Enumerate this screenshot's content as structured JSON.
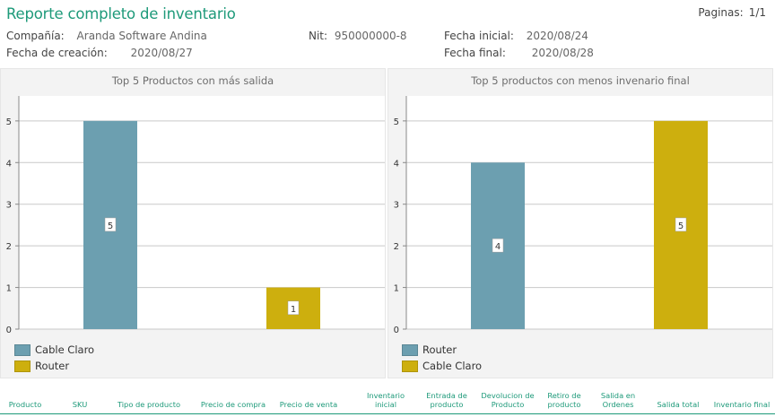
{
  "header": {
    "title": "Reporte completo de inventario",
    "pages_label": "Paginas:",
    "pages_value": "1/1"
  },
  "meta": {
    "company_label": "Compañía:",
    "company_value": "Aranda Software Andina",
    "nit_label": "Nit:",
    "nit_value": "950000000-8",
    "start_label": "Fecha inicial:",
    "start_value": "2020/08/24",
    "created_label": "Fecha de creación:",
    "created_value": "2020/08/27",
    "end_label": "Fecha final:",
    "end_value": "2020/08/28"
  },
  "colors": {
    "accent": "#1e9a7a",
    "series_blue": "#6c9fb0",
    "series_gold": "#cdaf0e"
  },
  "chart_data": [
    {
      "type": "bar",
      "title": "Top 5 Productos con más salida",
      "categories": [
        "Cable Claro",
        "Router"
      ],
      "values": [
        5,
        1
      ],
      "colors": [
        "#6c9fb0",
        "#cdaf0e"
      ],
      "ylim": [
        0,
        5.6
      ],
      "yticks": [
        "0",
        "1",
        "2",
        "3",
        "4",
        "5"
      ],
      "grid": true,
      "legend": [
        "Cable Claro",
        "Router"
      ],
      "legend_position": "bottom-left"
    },
    {
      "type": "bar",
      "title": "Top 5 productos con menos invenario final",
      "categories": [
        "Router",
        "Cable Claro"
      ],
      "values": [
        4,
        5
      ],
      "colors": [
        "#6c9fb0",
        "#cdaf0e"
      ],
      "ylim": [
        0,
        5.6
      ],
      "yticks": [
        "0",
        "1",
        "2",
        "3",
        "4",
        "5"
      ],
      "grid": true,
      "legend": [
        "Router",
        "Cable Claro"
      ],
      "legend_position": "bottom-left"
    }
  ],
  "table": {
    "columns": [
      "Producto",
      "SKU",
      "Tipo de producto",
      "Precio de compra",
      "Precio de venta",
      "Inventario\ninicial",
      "Entrada de\nproducto",
      "Devolucion de\nProducto",
      "Retiro de\nproducto",
      "Salida en\nOrdenes",
      "Salida total",
      "Inventario final"
    ]
  }
}
